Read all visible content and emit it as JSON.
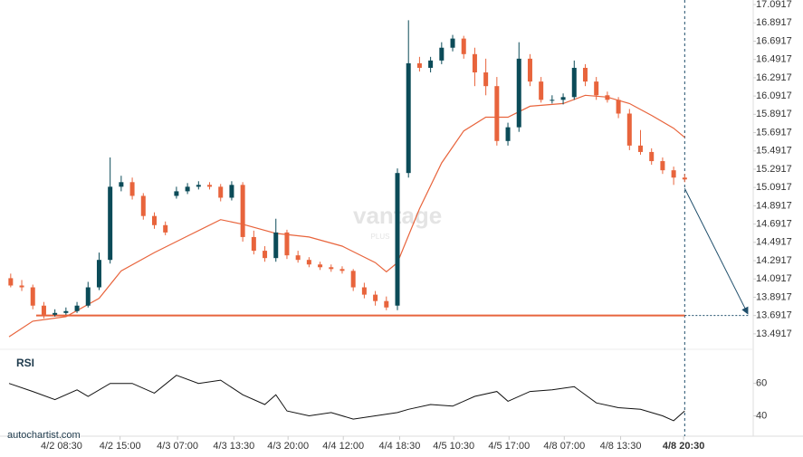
{
  "chart_data": [
    {
      "type": "candlestick",
      "watermark": "vantage",
      "watermark_sub": "PLUS",
      "x": [
        0,
        1,
        2,
        3,
        4,
        5,
        6,
        7,
        8,
        9,
        10,
        11,
        12,
        13,
        14,
        15,
        16,
        17,
        18,
        19,
        20,
        21,
        22,
        23,
        24,
        25,
        26,
        27,
        28,
        29,
        30,
        31,
        32,
        33,
        34,
        35,
        36,
        37,
        38,
        39,
        40,
        41,
        42,
        43,
        44,
        45,
        46,
        47,
        48,
        49,
        50,
        51,
        52,
        53,
        54,
        55,
        56,
        57,
        58,
        59,
        60,
        61
      ],
      "open": [
        14.1,
        14.02,
        14.0,
        13.8,
        13.7,
        13.72,
        13.74,
        13.8,
        14.0,
        14.3,
        15.1,
        15.15,
        15.0,
        14.78,
        14.68,
        15.0,
        15.05,
        15.1,
        15.12,
        15.1,
        14.98,
        15.12,
        14.55,
        14.4,
        14.32,
        14.6,
        14.35,
        14.3,
        14.25,
        14.22,
        14.2,
        14.18,
        14.0,
        13.92,
        13.85,
        13.8,
        15.25,
        16.45,
        16.4,
        16.48,
        16.62,
        16.72,
        16.55,
        16.35,
        16.2,
        15.6,
        15.75,
        16.5,
        16.25,
        16.05,
        16.05,
        16.08,
        16.4,
        16.25,
        16.1,
        16.05,
        15.9,
        15.55,
        15.48,
        15.38,
        15.28,
        15.2
      ],
      "high": [
        14.15,
        14.08,
        14.03,
        13.84,
        13.76,
        13.78,
        13.84,
        14.06,
        14.38,
        15.42,
        15.22,
        15.2,
        15.03,
        14.82,
        14.72,
        15.1,
        15.14,
        15.16,
        15.15,
        15.13,
        15.16,
        15.15,
        14.62,
        14.45,
        14.75,
        14.63,
        14.4,
        14.33,
        14.28,
        14.25,
        14.23,
        14.2,
        14.05,
        13.96,
        13.9,
        15.3,
        16.92,
        16.52,
        16.52,
        16.68,
        16.76,
        16.75,
        16.62,
        16.5,
        16.3,
        15.8,
        16.68,
        16.55,
        16.3,
        16.1,
        16.12,
        16.48,
        16.44,
        16.3,
        16.14,
        16.08,
        15.95,
        15.72,
        15.52,
        15.42,
        15.32,
        15.24
      ],
      "low": [
        14.0,
        13.96,
        13.76,
        13.66,
        13.68,
        13.7,
        13.72,
        13.78,
        13.97,
        14.26,
        15.05,
        14.96,
        14.74,
        14.64,
        14.57,
        14.97,
        15.02,
        15.07,
        15.07,
        14.94,
        14.95,
        14.5,
        14.36,
        14.28,
        14.28,
        14.31,
        14.27,
        14.22,
        14.19,
        14.17,
        14.15,
        13.96,
        13.88,
        13.8,
        13.75,
        13.75,
        15.2,
        16.36,
        16.35,
        16.44,
        16.58,
        16.5,
        16.2,
        16.1,
        15.55,
        15.55,
        15.7,
        16.2,
        16.02,
        16.01,
        16.0,
        16.05,
        16.2,
        16.05,
        16.02,
        15.85,
        15.5,
        15.45,
        15.34,
        15.24,
        15.12,
        15.15
      ],
      "close": [
        14.02,
        14.0,
        13.8,
        13.7,
        13.72,
        13.74,
        13.8,
        14.0,
        14.3,
        15.1,
        15.15,
        15.0,
        14.78,
        14.68,
        14.6,
        15.05,
        15.1,
        15.12,
        15.1,
        14.98,
        15.12,
        14.55,
        14.4,
        14.32,
        14.6,
        14.35,
        14.3,
        14.25,
        14.22,
        14.2,
        14.18,
        14.0,
        13.92,
        13.85,
        13.78,
        15.25,
        16.45,
        16.4,
        16.48,
        16.62,
        16.72,
        16.55,
        16.35,
        16.2,
        15.6,
        15.75,
        16.5,
        16.25,
        16.05,
        16.05,
        16.08,
        16.4,
        16.25,
        16.1,
        16.05,
        15.9,
        15.55,
        15.48,
        15.38,
        15.28,
        15.2,
        15.18
      ],
      "up_color": "#0b4b58",
      "down_color": "#e8643c",
      "ma": {
        "color": "#e8643c",
        "x": [
          -0.15,
          2,
          5,
          8,
          10,
          13,
          16,
          19,
          21,
          24,
          27,
          30,
          33,
          34,
          35,
          37,
          39,
          41,
          43,
          45,
          47,
          50,
          52,
          54,
          56,
          58,
          60,
          61
        ],
        "values": [
          13.46,
          13.63,
          13.68,
          13.88,
          14.18,
          14.38,
          14.56,
          14.74,
          14.69,
          14.59,
          14.55,
          14.45,
          14.27,
          14.17,
          14.27,
          14.86,
          15.36,
          15.71,
          15.86,
          15.86,
          15.98,
          16.01,
          16.1,
          16.08,
          16.01,
          15.88,
          15.74,
          15.64
        ]
      },
      "support": 13.6917,
      "support_color": "#e8643c",
      "forecast_color": "#1f4e6b",
      "xlim": [
        -0.15,
        67.2
      ],
      "ylim": [
        13.3917,
        17.1417
      ],
      "xticks": [
        {
          "value": 4.6,
          "label": "4/2 08:30"
        },
        {
          "value": 9.9,
          "label": "4/2 15:00"
        },
        {
          "value": 15.1,
          "label": "4/3 07:00"
        },
        {
          "value": 20.2,
          "label": "4/3 13:30"
        },
        {
          "value": 25.1,
          "label": "4/3 20:00"
        },
        {
          "value": 30.1,
          "label": "4/4 12:00"
        },
        {
          "value": 35.2,
          "label": "4/4 18:30"
        },
        {
          "value": 40.1,
          "label": "4/5 10:30"
        },
        {
          "value": 45.1,
          "label": "4/5 17:00"
        },
        {
          "value": 50.1,
          "label": "4/8 07:00"
        },
        {
          "value": 55.2,
          "label": "4/8 13:30"
        },
        {
          "value": 60.9,
          "label": "4/8 20:30"
        }
      ],
      "yticks": [
        13.4917,
        13.6917,
        13.8917,
        14.0917,
        14.2917,
        14.4917,
        14.6917,
        14.8917,
        15.0917,
        15.2917,
        15.4917,
        15.6917,
        15.8917,
        16.0917,
        16.2917,
        16.4917,
        16.6917,
        16.8917,
        17.0917
      ],
      "grid": false,
      "source": "autochartist.com"
    },
    {
      "type": "line",
      "title": "RSI",
      "color": "#111111",
      "x": [
        -0.15,
        2,
        4,
        6,
        7,
        9,
        11,
        13,
        15,
        17,
        19,
        21,
        23,
        24,
        25,
        27,
        29,
        31,
        33,
        35,
        36,
        38,
        40,
        42,
        44,
        45,
        47,
        49,
        51,
        53,
        55,
        57,
        59,
        60,
        61
      ],
      "values": [
        60,
        55,
        50,
        56,
        52,
        60,
        60,
        54,
        65,
        60,
        62,
        53,
        47,
        53,
        43,
        40,
        42,
        38,
        40,
        42,
        44,
        47,
        46,
        52,
        55,
        49,
        55,
        56,
        58,
        48,
        45,
        44,
        40,
        37,
        43
      ],
      "ylim": [
        28,
        76
      ],
      "yticks": [
        40,
        60
      ],
      "grid": false
    }
  ]
}
